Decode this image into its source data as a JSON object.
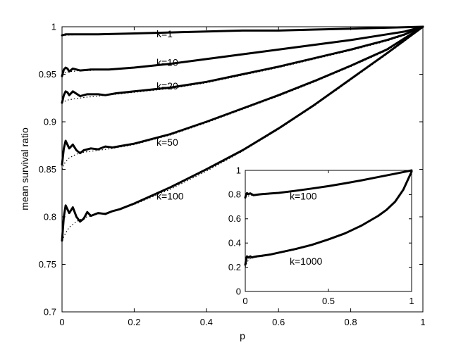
{
  "chart_data": [
    {
      "type": "line",
      "title": "",
      "xlabel": "p",
      "ylabel": "mean survival ratio",
      "xlim": [
        0,
        1
      ],
      "ylim": [
        0.7,
        1
      ],
      "xticks": [
        0,
        0.2,
        0.4,
        0.6,
        0.8,
        1
      ],
      "xtick_labels": [
        "0",
        "0.2",
        "0.4",
        "0.6",
        "0.8",
        "1"
      ],
      "yticks": [
        0.7,
        0.75,
        0.8,
        0.85,
        0.9,
        0.95,
        1
      ],
      "ytick_labels": [
        "0.7",
        "0.75",
        "0.8",
        "0.85",
        "0.9",
        "0.95",
        "1"
      ],
      "grid": false,
      "legend": "none",
      "series": [
        {
          "label": "k=1",
          "label_at": [
            0.25,
            0.989
          ],
          "x": [
            0.0,
            0.01,
            0.05,
            0.1,
            0.2,
            0.3,
            0.4,
            0.5,
            0.6,
            0.7,
            0.8,
            0.9,
            1.0
          ],
          "y": [
            0.991,
            0.992,
            0.992,
            0.992,
            0.993,
            0.994,
            0.995,
            0.996,
            0.996,
            0.997,
            0.998,
            0.999,
            1.0
          ],
          "theory_y": [
            0.991,
            0.991,
            0.992,
            0.992,
            0.993,
            0.994,
            0.995,
            0.996,
            0.996,
            0.997,
            0.998,
            0.999,
            1.0
          ]
        },
        {
          "label": "k=10",
          "label_at": [
            0.25,
            0.959
          ],
          "x": [
            0.0,
            0.005,
            0.01,
            0.015,
            0.02,
            0.03,
            0.05,
            0.08,
            0.1,
            0.13,
            0.2,
            0.3,
            0.4,
            0.5,
            0.6,
            0.7,
            0.8,
            0.9,
            0.95,
            1.0
          ],
          "y": [
            0.948,
            0.955,
            0.957,
            0.956,
            0.953,
            0.956,
            0.954,
            0.955,
            0.955,
            0.955,
            0.957,
            0.961,
            0.966,
            0.971,
            0.976,
            0.981,
            0.986,
            0.992,
            0.995,
            1.0
          ],
          "theory_y": [
            0.95,
            0.951,
            0.952,
            0.952,
            0.953,
            0.953,
            0.954,
            0.954,
            0.955,
            0.955,
            0.957,
            0.961,
            0.966,
            0.971,
            0.976,
            0.981,
            0.986,
            0.992,
            0.995,
            1.0
          ]
        },
        {
          "label": "k=20",
          "label_at": [
            0.25,
            0.934
          ],
          "x": [
            0.0,
            0.005,
            0.01,
            0.015,
            0.02,
            0.03,
            0.05,
            0.07,
            0.1,
            0.12,
            0.15,
            0.2,
            0.3,
            0.4,
            0.5,
            0.6,
            0.7,
            0.8,
            0.9,
            0.95,
            1.0
          ],
          "y": [
            0.92,
            0.928,
            0.932,
            0.931,
            0.928,
            0.932,
            0.927,
            0.929,
            0.929,
            0.928,
            0.93,
            0.932,
            0.936,
            0.942,
            0.95,
            0.958,
            0.967,
            0.976,
            0.986,
            0.992,
            1.0
          ],
          "theory_y": [
            0.92,
            0.921,
            0.922,
            0.923,
            0.923,
            0.924,
            0.925,
            0.926,
            0.927,
            0.928,
            0.929,
            0.931,
            0.935,
            0.941,
            0.949,
            0.957,
            0.966,
            0.975,
            0.985,
            0.991,
            1.0
          ]
        },
        {
          "label": "k=50",
          "label_at": [
            0.25,
            0.875
          ],
          "x": [
            0.0,
            0.005,
            0.01,
            0.015,
            0.02,
            0.03,
            0.04,
            0.05,
            0.06,
            0.08,
            0.1,
            0.12,
            0.14,
            0.17,
            0.2,
            0.3,
            0.4,
            0.5,
            0.6,
            0.7,
            0.8,
            0.9,
            0.95,
            1.0
          ],
          "y": [
            0.855,
            0.872,
            0.88,
            0.876,
            0.872,
            0.876,
            0.87,
            0.867,
            0.87,
            0.872,
            0.871,
            0.874,
            0.873,
            0.875,
            0.877,
            0.887,
            0.9,
            0.914,
            0.928,
            0.943,
            0.959,
            0.976,
            0.988,
            1.0
          ],
          "theory_y": [
            0.85,
            0.855,
            0.858,
            0.86,
            0.862,
            0.864,
            0.866,
            0.867,
            0.868,
            0.869,
            0.87,
            0.871,
            0.872,
            0.874,
            0.876,
            0.886,
            0.899,
            0.913,
            0.927,
            0.942,
            0.958,
            0.975,
            0.987,
            1.0
          ]
        },
        {
          "label": "k=100",
          "label_at": [
            0.25,
            0.818
          ],
          "x": [
            0.0,
            0.005,
            0.01,
            0.015,
            0.02,
            0.03,
            0.04,
            0.05,
            0.06,
            0.07,
            0.08,
            0.1,
            0.12,
            0.14,
            0.16,
            0.2,
            0.3,
            0.4,
            0.5,
            0.6,
            0.7,
            0.8,
            0.9,
            0.95,
            1.0
          ],
          "y": [
            0.775,
            0.8,
            0.812,
            0.808,
            0.804,
            0.81,
            0.8,
            0.795,
            0.798,
            0.805,
            0.801,
            0.804,
            0.803,
            0.806,
            0.808,
            0.814,
            0.831,
            0.85,
            0.87,
            0.893,
            0.918,
            0.945,
            0.972,
            0.986,
            1.0
          ],
          "theory_y": [
            0.775,
            0.779,
            0.783,
            0.786,
            0.789,
            0.792,
            0.795,
            0.797,
            0.799,
            0.8,
            0.801,
            0.803,
            0.804,
            0.806,
            0.808,
            0.813,
            0.829,
            0.848,
            0.869,
            0.892,
            0.917,
            0.944,
            0.971,
            0.985,
            1.0
          ]
        }
      ]
    },
    {
      "type": "line",
      "title": "",
      "xlabel": "",
      "ylabel": "",
      "xlim": [
        0,
        1
      ],
      "ylim": [
        0,
        1
      ],
      "xticks": [
        0,
        0.5,
        1
      ],
      "xtick_labels": [
        "0",
        "0.5",
        "1"
      ],
      "yticks": [
        0,
        0.2,
        0.4,
        0.6,
        0.8,
        1
      ],
      "ytick_labels": [
        "0",
        "0.2",
        "0.4",
        "0.6",
        "0.8",
        "1"
      ],
      "grid": false,
      "legend": "none",
      "placement": "bottom-right inset",
      "series": [
        {
          "label": "k=100",
          "label_at": [
            0.25,
            0.76
          ],
          "x": [
            0.0,
            0.005,
            0.01,
            0.02,
            0.03,
            0.05,
            0.08,
            0.1,
            0.2,
            0.3,
            0.4,
            0.5,
            0.6,
            0.7,
            0.8,
            0.9,
            0.95,
            1.0
          ],
          "y": [
            0.775,
            0.8,
            0.812,
            0.804,
            0.81,
            0.795,
            0.801,
            0.804,
            0.814,
            0.831,
            0.85,
            0.87,
            0.893,
            0.918,
            0.945,
            0.972,
            0.986,
            1.0
          ],
          "theory_y": [
            0.775,
            0.779,
            0.783,
            0.789,
            0.792,
            0.797,
            0.801,
            0.803,
            0.813,
            0.829,
            0.848,
            0.869,
            0.892,
            0.917,
            0.944,
            0.971,
            0.985,
            1.0
          ]
        },
        {
          "label": "k=1000",
          "label_at": [
            0.25,
            0.22
          ],
          "x": [
            0.0,
            0.005,
            0.01,
            0.02,
            0.03,
            0.04,
            0.05,
            0.07,
            0.1,
            0.15,
            0.2,
            0.3,
            0.4,
            0.5,
            0.6,
            0.7,
            0.8,
            0.85,
            0.9,
            0.95,
            1.0
          ],
          "y": [
            0.22,
            0.26,
            0.29,
            0.28,
            0.29,
            0.28,
            0.285,
            0.29,
            0.295,
            0.305,
            0.32,
            0.35,
            0.385,
            0.43,
            0.48,
            0.545,
            0.625,
            0.675,
            0.74,
            0.84,
            0.99
          ],
          "theory_y": [
            0.2,
            0.22,
            0.24,
            0.26,
            0.27,
            0.275,
            0.28,
            0.285,
            0.29,
            0.3,
            0.315,
            0.345,
            0.38,
            0.425,
            0.475,
            0.54,
            0.62,
            0.67,
            0.735,
            0.835,
            0.99
          ]
        }
      ]
    }
  ]
}
